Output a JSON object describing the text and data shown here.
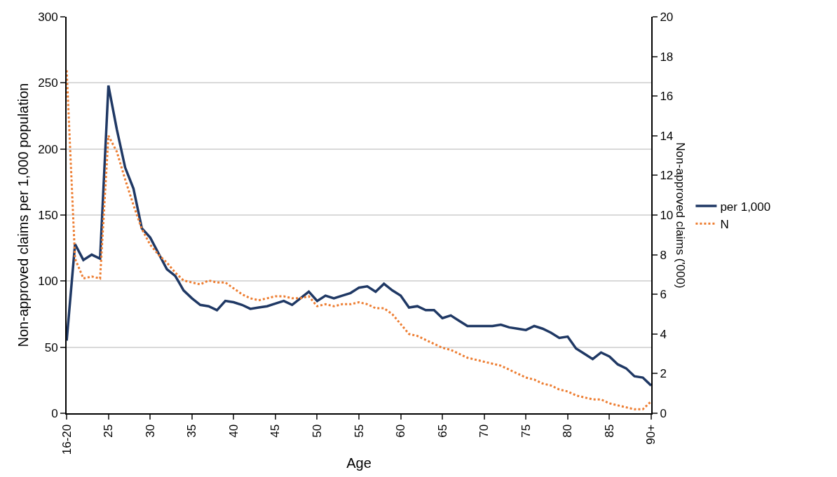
{
  "chart_data": {
    "type": "line",
    "categories": [
      "16-20",
      null,
      null,
      null,
      null,
      "25",
      null,
      null,
      null,
      null,
      "30",
      null,
      null,
      null,
      null,
      "35",
      null,
      null,
      null,
      null,
      "40",
      null,
      null,
      null,
      null,
      "45",
      null,
      null,
      null,
      null,
      "50",
      null,
      null,
      null,
      null,
      "55",
      null,
      null,
      null,
      null,
      "60",
      null,
      null,
      null,
      null,
      "65",
      null,
      null,
      null,
      null,
      "70",
      null,
      null,
      null,
      null,
      "75",
      null,
      null,
      null,
      null,
      "80",
      null,
      null,
      null,
      null,
      "85",
      null,
      null,
      null,
      null,
      "90+"
    ],
    "xlabel": "Age",
    "ylabel": "Non-approved claims per 1,000 population",
    "y2label": "Non-approved claims ('000)",
    "ylim": [
      0,
      300
    ],
    "yticks": [
      0,
      50,
      100,
      150,
      200,
      250,
      300
    ],
    "y2lim": [
      0,
      20
    ],
    "y2ticks": [
      0,
      2,
      4,
      6,
      8,
      10,
      12,
      14,
      16,
      18,
      20
    ],
    "grid": "y",
    "legend": "right",
    "marker": "none",
    "series": [
      {
        "name": "per 1,000",
        "color": "#1f3864",
        "line_style": "solid",
        "values": [
          55,
          128,
          116,
          120,
          117,
          248,
          215,
          186,
          170,
          140,
          133,
          121,
          109,
          104,
          93,
          87,
          82,
          81,
          78,
          85,
          84,
          82,
          79,
          80,
          81,
          83,
          85,
          82,
          87,
          92,
          85,
          89,
          87,
          89,
          91,
          95,
          96,
          92,
          98,
          93,
          89,
          80,
          81,
          78,
          78,
          72,
          74,
          70,
          66,
          66,
          66,
          66,
          67,
          65,
          64,
          63,
          66,
          64,
          61,
          57,
          58,
          49,
          45,
          41,
          46,
          43,
          37,
          34,
          28,
          27,
          21
        ]
      },
      {
        "name": "N",
        "color": "#ed7d31",
        "line_style": "dotted",
        "axis": "y2",
        "values": [
          17.3,
          7.8,
          6.8,
          6.9,
          6.8,
          14.0,
          13.2,
          11.8,
          10.5,
          9.3,
          8.5,
          8.0,
          7.6,
          7.1,
          6.7,
          6.6,
          6.5,
          6.7,
          6.6,
          6.6,
          6.3,
          6.0,
          5.8,
          5.7,
          5.8,
          5.9,
          5.9,
          5.8,
          5.8,
          5.9,
          5.4,
          5.5,
          5.4,
          5.5,
          5.5,
          5.6,
          5.5,
          5.3,
          5.3,
          5.0,
          4.5,
          4.0,
          3.9,
          3.7,
          3.5,
          3.3,
          3.2,
          3.0,
          2.8,
          2.7,
          2.6,
          2.5,
          2.4,
          2.2,
          2.0,
          1.8,
          1.7,
          1.5,
          1.4,
          1.2,
          1.1,
          0.9,
          0.8,
          0.7,
          0.7,
          0.5,
          0.4,
          0.3,
          0.2,
          0.2,
          0.6
        ]
      }
    ]
  }
}
